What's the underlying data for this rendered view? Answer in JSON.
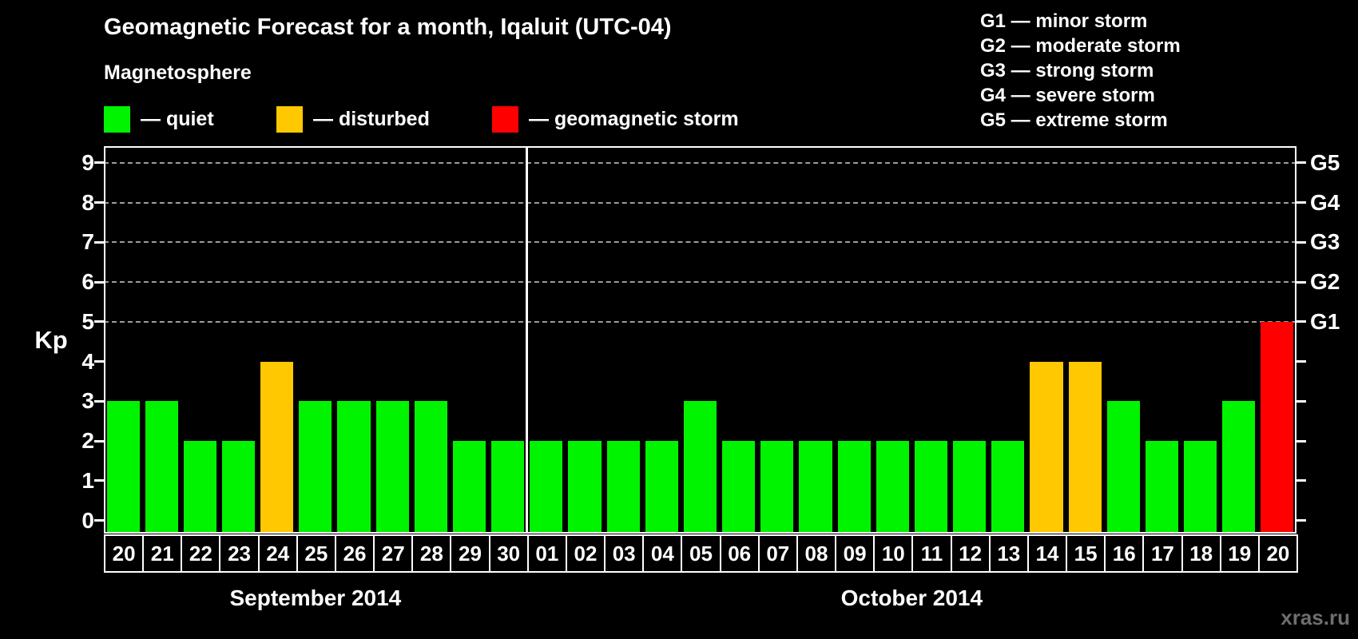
{
  "header": {
    "title": "Geomagnetic Forecast for a month, Iqaluit (UTC-04)",
    "subtitle": "Magnetosphere"
  },
  "legend": {
    "items": [
      {
        "name": "quiet",
        "label": "— quiet",
        "color": "#00f400"
      },
      {
        "name": "disturbed",
        "label": "— disturbed",
        "color": "#ffc800"
      },
      {
        "name": "storm",
        "label": "— geomagnetic storm",
        "color": "#ff0000"
      }
    ]
  },
  "storm_scale": {
    "items": [
      "G1 — minor storm",
      "G2 — moderate storm",
      "G3 — strong storm",
      "G4 — severe storm",
      "G5 — extreme storm"
    ]
  },
  "watermark": "xras.ru",
  "chart_data": {
    "type": "bar",
    "title": "Geomagnetic Forecast for a month, Iqaluit (UTC-04)",
    "ylabel": "Kp",
    "ylim": [
      0,
      9
    ],
    "yticks": [
      0,
      1,
      2,
      3,
      4,
      5,
      6,
      7,
      8,
      9
    ],
    "gridlines": [
      5,
      6,
      7,
      8,
      9
    ],
    "grid_style": "dashed",
    "legend_position": "top",
    "right_axis": [
      {
        "value": 5,
        "label": "G1"
      },
      {
        "value": 6,
        "label": "G2"
      },
      {
        "value": 7,
        "label": "G3"
      },
      {
        "value": 8,
        "label": "G4"
      },
      {
        "value": 9,
        "label": "G5"
      }
    ],
    "status_colors": {
      "quiet": "#00f400",
      "disturbed": "#ffc800",
      "storm": "#ff0000"
    },
    "months": [
      {
        "label": "September 2014",
        "days": [
          {
            "day": "20",
            "kp": 3,
            "status": "quiet"
          },
          {
            "day": "21",
            "kp": 3,
            "status": "quiet"
          },
          {
            "day": "22",
            "kp": 2,
            "status": "quiet"
          },
          {
            "day": "23",
            "kp": 2,
            "status": "quiet"
          },
          {
            "day": "24",
            "kp": 4,
            "status": "disturbed"
          },
          {
            "day": "25",
            "kp": 3,
            "status": "quiet"
          },
          {
            "day": "26",
            "kp": 3,
            "status": "quiet"
          },
          {
            "day": "27",
            "kp": 3,
            "status": "quiet"
          },
          {
            "day": "28",
            "kp": 3,
            "status": "quiet"
          },
          {
            "day": "29",
            "kp": 2,
            "status": "quiet"
          },
          {
            "day": "30",
            "kp": 2,
            "status": "quiet"
          }
        ]
      },
      {
        "label": "October 2014",
        "days": [
          {
            "day": "01",
            "kp": 2,
            "status": "quiet"
          },
          {
            "day": "02",
            "kp": 2,
            "status": "quiet"
          },
          {
            "day": "03",
            "kp": 2,
            "status": "quiet"
          },
          {
            "day": "04",
            "kp": 2,
            "status": "quiet"
          },
          {
            "day": "05",
            "kp": 3,
            "status": "quiet"
          },
          {
            "day": "06",
            "kp": 2,
            "status": "quiet"
          },
          {
            "day": "07",
            "kp": 2,
            "status": "quiet"
          },
          {
            "day": "08",
            "kp": 2,
            "status": "quiet"
          },
          {
            "day": "09",
            "kp": 2,
            "status": "quiet"
          },
          {
            "day": "10",
            "kp": 2,
            "status": "quiet"
          },
          {
            "day": "11",
            "kp": 2,
            "status": "quiet"
          },
          {
            "day": "12",
            "kp": 2,
            "status": "quiet"
          },
          {
            "day": "13",
            "kp": 2,
            "status": "quiet"
          },
          {
            "day": "14",
            "kp": 4,
            "status": "disturbed"
          },
          {
            "day": "15",
            "kp": 4,
            "status": "disturbed"
          },
          {
            "day": "16",
            "kp": 3,
            "status": "quiet"
          },
          {
            "day": "17",
            "kp": 2,
            "status": "quiet"
          },
          {
            "day": "18",
            "kp": 2,
            "status": "quiet"
          },
          {
            "day": "19",
            "kp": 3,
            "status": "quiet"
          },
          {
            "day": "20",
            "kp": 5,
            "status": "storm"
          }
        ]
      }
    ]
  }
}
